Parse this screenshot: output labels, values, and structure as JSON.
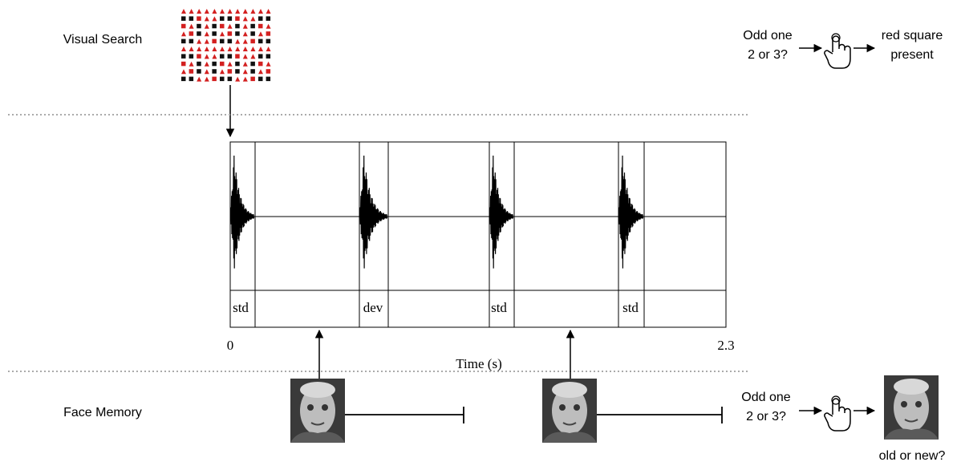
{
  "rows": [
    {
      "label": "Visual Search"
    },
    {
      "label": "Face Memory"
    }
  ],
  "timeline": {
    "segments": [
      "std",
      "dev",
      "std",
      "std"
    ],
    "axis_start": 0,
    "axis_end": 2.3,
    "axis_label": "Time (s)"
  },
  "visual_search_task": {
    "question": [
      "Odd one",
      "2 or 3?"
    ],
    "response": [
      "red square",
      "present"
    ]
  },
  "face_memory_task": {
    "question": [
      "Odd one",
      "2 or 3?"
    ],
    "response": "old or new?"
  }
}
